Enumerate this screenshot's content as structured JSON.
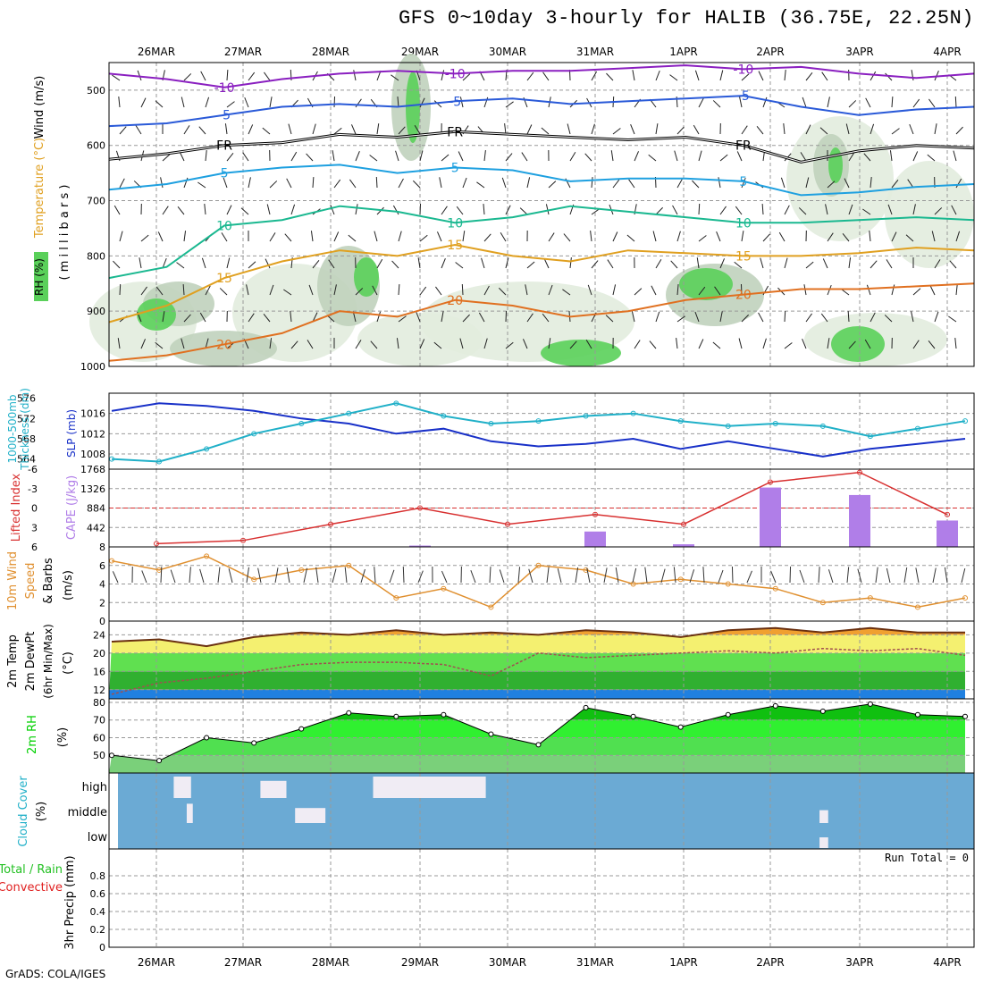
{
  "title": "GFS 0~10day 3-hourly for HALIB (36.75E, 22.25N)",
  "credit": "GrADS: COLA/IGES",
  "dates": [
    "26MAR",
    "27MAR",
    "28MAR",
    "29MAR",
    "30MAR",
    "31MAR",
    "1APR",
    "2APR",
    "3APR",
    "4APR"
  ],
  "colors": {
    "temp_m10": "#8a1fc0",
    "temp_m5": "#2a5ad8",
    "temp_5": "#1ea0e0",
    "temp_10": "#1ab890",
    "temp_15": "#e0a020",
    "temp_20": "#e07020",
    "freezing": "#000000",
    "rh_light": "#e2ecde",
    "rh_mid": "#c0d2bc",
    "rh_dark": "#9fb49a",
    "rh_green": "#5ad05a",
    "slp": "#1830c8",
    "thickness": "#20b0c8",
    "lifted": "#d83030",
    "cape": "#b07ee8",
    "wind10": "#e09030",
    "cloud_bg": "#6baad4",
    "cloud_fill": "#f0ecf4",
    "t2_orange": "#f0a030",
    "t2_yellow": "#f4f070",
    "t2_lgreen": "#60e050",
    "t2_green": "#30b030",
    "t2_blue": "#2080e0",
    "rh_band": "#00d000"
  },
  "chart_data": [
    {
      "type": "heatmap",
      "panel": "upper_air",
      "title": "Wind (m/s) Temperature (°C) RH (%)",
      "ylabel": "( m i l l i b a r s )",
      "axis_label_segments": [
        "Wind (m/s)",
        "Temperature (°C)",
        "RH (%)"
      ],
      "ylim": [
        1000,
        450
      ],
      "yticks": [
        500,
        600,
        700,
        800,
        900,
        1000
      ],
      "contours": [
        {
          "label": "-10",
          "level_mb": [
            470,
            480,
            495,
            480,
            470,
            465,
            470,
            465,
            465,
            460,
            455,
            462,
            458,
            470,
            478,
            470
          ]
        },
        {
          "label": "-5",
          "level_mb": [
            565,
            560,
            545,
            530,
            525,
            530,
            520,
            515,
            525,
            520,
            515,
            510,
            530,
            545,
            535,
            530
          ]
        },
        {
          "label": "FR",
          "level_mb": [
            625,
            615,
            600,
            595,
            580,
            585,
            575,
            580,
            585,
            590,
            585,
            600,
            630,
            610,
            600,
            605
          ]
        },
        {
          "label": "5",
          "level_mb": [
            680,
            670,
            650,
            640,
            635,
            650,
            640,
            645,
            665,
            660,
            660,
            665,
            690,
            685,
            675,
            670
          ]
        },
        {
          "label": "10",
          "level_mb": [
            840,
            820,
            745,
            735,
            710,
            720,
            740,
            730,
            710,
            720,
            730,
            740,
            740,
            735,
            730,
            735
          ]
        },
        {
          "label": "15",
          "level_mb": [
            920,
            890,
            840,
            810,
            790,
            800,
            780,
            800,
            810,
            790,
            795,
            800,
            800,
            795,
            785,
            790
          ]
        },
        {
          "label": "20",
          "level_mb": [
            990,
            980,
            960,
            940,
            900,
            910,
            880,
            890,
            910,
            900,
            880,
            870,
            860,
            860,
            855,
            850
          ]
        }
      ]
    },
    {
      "type": "line",
      "panel": "slp_thickness",
      "title": "1000-500mb Thickness (dm) SLP (mb)",
      "axis_label_segments": [
        "1000-500mb",
        "Thickness (dm)",
        "SLP (mb)"
      ],
      "x": [
        "26MAR",
        "",
        "27MAR",
        "",
        "28MAR",
        "",
        "29MAR",
        "",
        "30MAR",
        "",
        "31MAR",
        "",
        "1APR",
        "",
        "2APR",
        "",
        "3APR",
        "",
        "4APR"
      ],
      "ylim_left": [
        562,
        577
      ],
      "yticks_left": [
        564,
        568,
        572,
        576
      ],
      "ylim_right": [
        1005,
        1020
      ],
      "yticks_right": [
        1008,
        1012,
        1016
      ],
      "series": [
        {
          "name": "SLP (mb)",
          "axis": "right",
          "values": [
            1016.5,
            1018.0,
            1017.5,
            1016.5,
            1015.0,
            1014.0,
            1012.0,
            1013.0,
            1010.5,
            1009.5,
            1010.0,
            1011.0,
            1009.0,
            1010.5,
            1009.0,
            1007.5,
            1009.0,
            1010.0,
            1011.0
          ]
        },
        {
          "name": "1000-500mb Thickness (dm)",
          "axis": "left",
          "values": [
            564.0,
            563.5,
            566.0,
            569.0,
            571.0,
            573.0,
            575.0,
            572.5,
            571.0,
            571.5,
            572.5,
            573.0,
            571.5,
            570.5,
            571.0,
            570.5,
            568.5,
            570.0,
            571.5
          ]
        }
      ]
    },
    {
      "type": "bar",
      "panel": "cape_lifted",
      "title": "Lifted Index CAPE (J/kg)",
      "axis_label_segments": [
        "Lifted Index",
        "CAPE (J/kg)"
      ],
      "ylim_left": [
        6,
        -6
      ],
      "yticks_left": [
        6,
        3,
        0,
        -3,
        -6
      ],
      "ylim_right": [
        0,
        1768
      ],
      "yticks_right": [
        442,
        884,
        1326,
        1768
      ],
      "categories": [
        "26MAR",
        "27MAR",
        "28MAR",
        "29MAR",
        "30MAR",
        "31MAR",
        "1APR",
        "2APR",
        "3APR",
        "4APR"
      ],
      "series": [
        {
          "name": "CAPE (J/kg)",
          "values": [
            0,
            0,
            0,
            30,
            0,
            350,
            60,
            1350,
            1180,
            600
          ]
        },
        {
          "name": "Lifted Index",
          "values": [
            5.5,
            5.0,
            2.5,
            0.0,
            2.5,
            1.0,
            2.5,
            -4.0,
            -5.5,
            1.0
          ]
        }
      ]
    },
    {
      "type": "line",
      "panel": "wind10m",
      "title": "10m Wind Speed & Barbs (m/s)",
      "axis_label_segments": [
        "10m Wind",
        "Speed",
        "& Barbs",
        "(m/s)"
      ],
      "ylim": [
        0,
        8
      ],
      "yticks": [
        0,
        2,
        4,
        6,
        8
      ],
      "x": [
        "26MAR",
        "",
        "27MAR",
        "",
        "28MAR",
        "",
        "29MAR",
        "",
        "30MAR",
        "",
        "31MAR",
        "",
        "1APR",
        "",
        "2APR",
        "",
        "3APR",
        "",
        "4APR"
      ],
      "series": [
        {
          "name": "10m Wind Speed",
          "values": [
            6.5,
            5.5,
            7.0,
            4.5,
            5.5,
            6.0,
            2.5,
            3.5,
            1.5,
            6.0,
            5.5,
            4.0,
            4.5,
            4.0,
            3.5,
            2.0,
            2.5,
            1.5,
            2.5
          ]
        }
      ]
    },
    {
      "type": "area",
      "panel": "temp2m",
      "title": "2m Temp 2m DewPt (6hr Min/Max) (°C)",
      "axis_label_segments": [
        "2m Temp",
        "2m DewPt",
        "(6hr Min/Max)",
        "(°C)"
      ],
      "ylim": [
        10,
        27
      ],
      "yticks": [
        12,
        16,
        20,
        24
      ],
      "x": [
        "26MAR",
        "",
        "27MAR",
        "",
        "28MAR",
        "",
        "29MAR",
        "",
        "30MAR",
        "",
        "31MAR",
        "",
        "1APR",
        "",
        "2APR",
        "",
        "3APR",
        "",
        "4APR"
      ],
      "series": [
        {
          "name": "2m Temp",
          "values": [
            22.5,
            23.0,
            21.5,
            23.5,
            24.5,
            24.0,
            25.0,
            24.0,
            24.5,
            24.0,
            25.0,
            24.5,
            23.5,
            25.0,
            25.5,
            24.5,
            25.5,
            24.5,
            24.5
          ]
        },
        {
          "name": "2m DewPt",
          "values": [
            11.0,
            13.5,
            14.5,
            16.0,
            17.5,
            18.0,
            18.0,
            17.5,
            15.0,
            20.0,
            19.0,
            19.5,
            20.0,
            20.5,
            20.0,
            21.0,
            20.5,
            21.0,
            19.5
          ]
        }
      ]
    },
    {
      "type": "area",
      "panel": "rh2m",
      "title": "2m RH (%)",
      "axis_label_segments": [
        "2m RH",
        "(%)"
      ],
      "ylim": [
        40,
        82
      ],
      "yticks": [
        50,
        60,
        70,
        80
      ],
      "x": [
        "26MAR",
        "",
        "27MAR",
        "",
        "28MAR",
        "",
        "29MAR",
        "",
        "30MAR",
        "",
        "31MAR",
        "",
        "1APR",
        "",
        "2APR",
        "",
        "3APR",
        "",
        "4APR"
      ],
      "series": [
        {
          "name": "2m RH",
          "values": [
            50,
            47,
            60,
            57,
            65,
            74,
            72,
            73,
            62,
            56,
            77,
            72,
            66,
            73,
            78,
            75,
            79,
            73,
            72
          ]
        }
      ]
    },
    {
      "type": "heatmap",
      "panel": "cloud",
      "title": "Cloud Cover (%)",
      "axis_label_segments": [
        "Cloud Cover",
        "(%)"
      ],
      "yticks": [
        "high",
        "middle",
        "low"
      ],
      "blocks": [
        {
          "layer": "high",
          "from": 1.2,
          "to": 1.4,
          "cover": 1.0
        },
        {
          "layer": "middle",
          "from": 1.35,
          "to": 1.42,
          "cover": 0.9
        },
        {
          "layer": "high",
          "from": 2.2,
          "to": 2.5,
          "cover": 0.8
        },
        {
          "layer": "middle",
          "from": 2.6,
          "to": 2.95,
          "cover": 0.7
        },
        {
          "layer": "high",
          "from": 3.5,
          "to": 4.8,
          "cover": 1.0
        },
        {
          "layer": "middle",
          "from": 8.65,
          "to": 8.75,
          "cover": 0.6
        },
        {
          "layer": "low",
          "from": 8.65,
          "to": 8.75,
          "cover": 0.5
        }
      ]
    },
    {
      "type": "bar",
      "panel": "precip",
      "title": "Total / Rain Convective 3hr Precip (mm)",
      "axis_label_segments": [
        "Total / Rain",
        "Convective",
        "3hr Precip (mm)"
      ],
      "run_total": "Run Total = 0",
      "ylim": [
        0,
        1
      ],
      "yticks": [
        0,
        0.2,
        0.4,
        0.6,
        0.8
      ],
      "categories": [
        "26MAR",
        "27MAR",
        "28MAR",
        "29MAR",
        "30MAR",
        "31MAR",
        "1APR",
        "2APR",
        "3APR",
        "4APR"
      ],
      "series": [
        {
          "name": "3hr Precip",
          "values": [
            0,
            0,
            0,
            0,
            0,
            0,
            0,
            0,
            0,
            0
          ]
        }
      ]
    }
  ]
}
